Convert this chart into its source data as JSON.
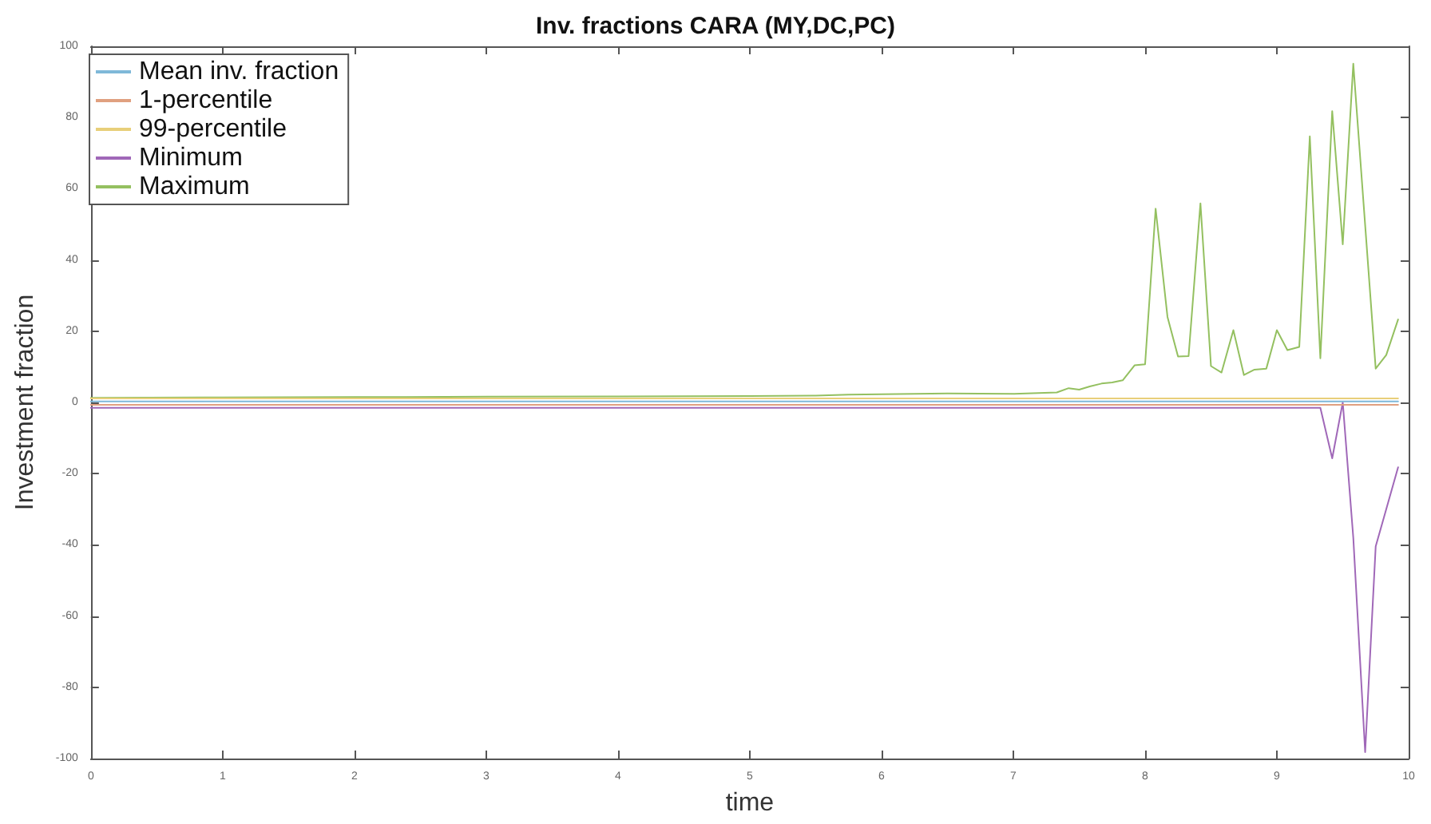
{
  "chart_data": {
    "type": "line",
    "title": "Inv. fractions CARA (MY,DC,PC)",
    "xlabel": "time",
    "ylabel": "Investment fraction",
    "xlim": [
      0,
      10
    ],
    "xticks": [
      0,
      1,
      2,
      3,
      4,
      5,
      6,
      7,
      8,
      9,
      10
    ],
    "ylim": [
      -100,
      100
    ],
    "yticks": [
      -100,
      -80,
      -60,
      -40,
      -20,
      0,
      20,
      40,
      60,
      80,
      100
    ],
    "grid": false,
    "legend": "top left",
    "marker": "none",
    "line_style": "solid",
    "series": [
      {
        "name": "Mean inv. fraction",
        "color": "#7fb8d8",
        "x": [
          0,
          9.92
        ],
        "values": [
          0.3,
          0.3
        ]
      },
      {
        "name": "1-percentile",
        "color": "#e0a080",
        "x": [
          0,
          9.92
        ],
        "values": [
          -0.7,
          -0.7
        ]
      },
      {
        "name": "99-percentile",
        "color": "#e8cf7a",
        "x": [
          0,
          9.92
        ],
        "values": [
          1.1,
          1.1
        ]
      },
      {
        "name": "Minimum",
        "color": "#a068b8",
        "x": [
          0,
          9.33,
          9.42,
          9.5,
          9.58,
          9.67,
          9.75,
          9.83,
          9.92
        ],
        "values": [
          -1.5,
          -1.5,
          -15.7,
          0,
          -38,
          -98.2,
          -40.4,
          -30,
          -18.2
        ]
      },
      {
        "name": "Maximum",
        "color": "#94c060",
        "x": [
          0,
          1,
          2,
          3,
          4,
          5,
          5.5,
          5.75,
          6.5,
          7,
          7.33,
          7.42,
          7.5,
          7.58,
          7.67,
          7.75,
          7.83,
          7.92,
          8,
          8.08,
          8.17,
          8.25,
          8.33,
          8.42,
          8.5,
          8.58,
          8.67,
          8.75,
          8.83,
          8.92,
          9,
          9.08,
          9.17,
          9.25,
          9.33,
          9.42,
          9.5,
          9.58,
          9.75,
          9.83,
          9.92
        ],
        "values": [
          1.3,
          1.4,
          1.5,
          1.6,
          1.7,
          1.8,
          1.9,
          2.2,
          2.5,
          2.4,
          2.8,
          4,
          3.6,
          4.5,
          5.3,
          5.6,
          6.2,
          10.4,
          10.7,
          54.4,
          24,
          12.9,
          13,
          55.9,
          10.2,
          8.4,
          20.3,
          7.7,
          9.2,
          9.5,
          20.3,
          14.7,
          15.6,
          74.7,
          12.4,
          81.8,
          44.4,
          95.1,
          9.5,
          13.3,
          23.3
        ]
      }
    ]
  }
}
